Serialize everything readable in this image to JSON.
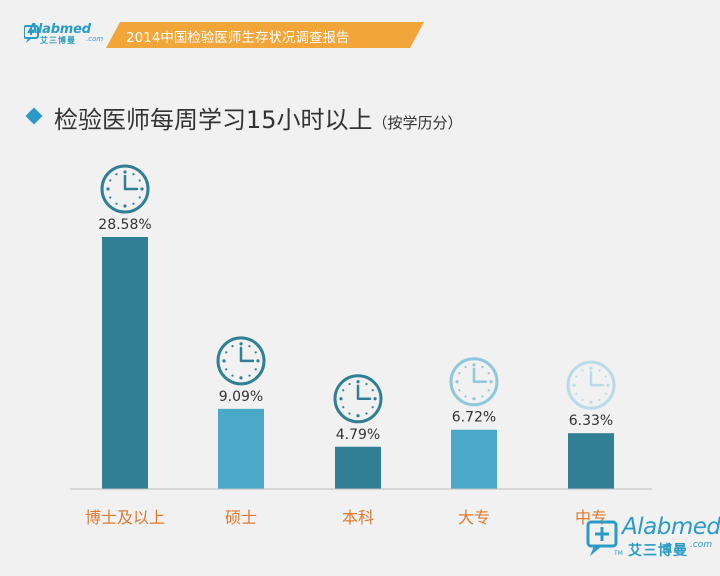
{
  "header": {
    "logo_name": "Alabmed",
    "logo_cn": "艾三博曼",
    "logo_com": ".com",
    "banner_text": "2014中国检验医师生存状况调查报告",
    "banner_color": "#f2a63a"
  },
  "title": {
    "main": "检验医师每周学习15小时以上",
    "sub": "（按学历分）"
  },
  "footer_logo": {
    "name": "Alabmed",
    "cn": "艾三博曼",
    "com": ".com",
    "tm": "TM"
  },
  "colors": {
    "accent": "#2a9bc6",
    "bar_dark": "#317f95",
    "bar_light": "#4aa9c6",
    "category_text": "#e07a2e",
    "icon_dark": "#317f95",
    "icon_mid": "#4aa9c6",
    "icon_light": "#8fc8dc",
    "icon_pale": "#b9dbe7"
  },
  "chart_data": {
    "type": "bar",
    "title": "检验医师每周学习15小时以上",
    "subtitle": "（按学历分）",
    "categories": [
      "博士及以上",
      "硕士",
      "本科",
      "大专",
      "中专"
    ],
    "values": [
      28.58,
      9.09,
      4.79,
      6.72,
      6.33
    ],
    "value_labels": [
      "28.58%",
      "9.09%",
      "4.79%",
      "6.72%",
      "6.33%"
    ],
    "bar_colors": [
      "#317f95",
      "#4aa9c6",
      "#317f95",
      "#4aa9c6",
      "#317f95"
    ],
    "icon_colors": [
      "#317f95",
      "#317f95",
      "#317f95",
      "#8fc8dc",
      "#b9dbe7"
    ],
    "icon": "clock-icon",
    "ylim": [
      0,
      30
    ],
    "grid": false,
    "legend": "none"
  }
}
